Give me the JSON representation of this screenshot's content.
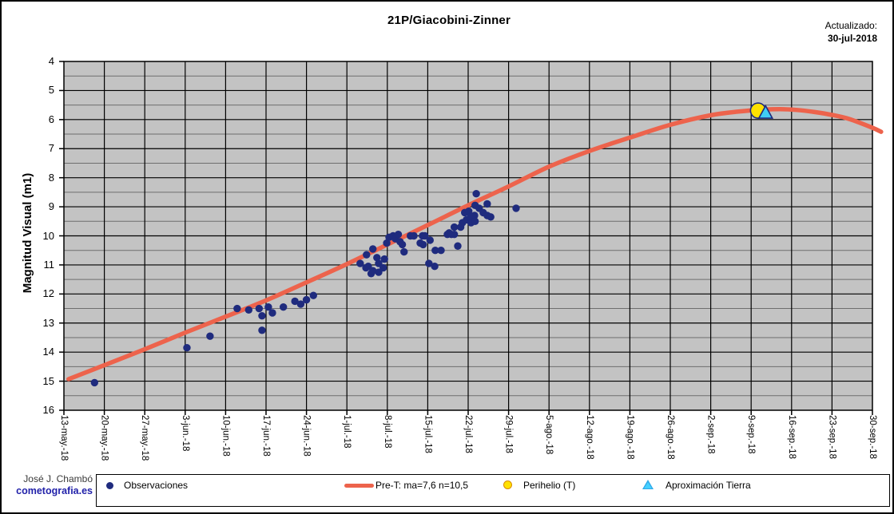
{
  "header": {
    "title": "21P/Giacobini-Zinner",
    "updated_label": "Actualizado:",
    "updated_date": "30-jul-2018"
  },
  "footer": {
    "author": "José J. Chambó",
    "site": "cometografia.es"
  },
  "colors": {
    "plot_bg": "#C3C3C3",
    "grid_major": "#000000",
    "grid_minor": "#6E6E6E",
    "axis": "#000000",
    "curve": "#ED634C",
    "observation": "#1F2B7E",
    "perihelion_fill": "#FFE100",
    "earth_approach_fill": "#3FCCF5",
    "marker_stroke": "#1F2B7E",
    "site_link": "#2222AA"
  },
  "chart_data": {
    "type": "scatter",
    "title": "21P/Giacobini-Zinner",
    "xlabel": "",
    "ylabel": "Magnitud Visual (m1)",
    "ylim": [
      4,
      16
    ],
    "y_inverted": true,
    "y_ticks": [
      4,
      5,
      6,
      7,
      8,
      9,
      10,
      11,
      12,
      13,
      14,
      15,
      16
    ],
    "y_minor_step": 0.5,
    "grid": true,
    "x_unit": "days since first tick (13-may-2018)",
    "x_tick_step_days": 7,
    "x_range_days": [
      0,
      140
    ],
    "x_tick_labels": [
      "13-may.-18",
      "20-may.-18",
      "27-may.-18",
      "3-jun.-18",
      "10-jun.-18",
      "17-jun.-18",
      "24-jun.-18",
      "1-jul.-18",
      "8-jul.-18",
      "15-jul.-18",
      "22-jul.-18",
      "29-jul.-18",
      "5-ago.-18",
      "12-ago.-18",
      "19-ago.-18",
      "26-ago.-18",
      "2-sep.-18",
      "9-sep.-18",
      "16-sep.-18",
      "23-sep.-18",
      "30-sep.-18"
    ],
    "legend_position": "bottom",
    "series": [
      {
        "id": "observations",
        "name": "Observaciones",
        "type": "scatter",
        "color": "#1F2B7E",
        "points": [
          [
            5.3,
            15.05
          ],
          [
            21.3,
            13.85
          ],
          [
            25.3,
            13.45
          ],
          [
            30,
            12.5
          ],
          [
            32,
            12.55
          ],
          [
            33.8,
            12.5
          ],
          [
            34.3,
            12.75
          ],
          [
            34.3,
            13.25
          ],
          [
            35.4,
            12.45
          ],
          [
            36.1,
            12.65
          ],
          [
            38,
            12.45
          ],
          [
            40,
            12.25
          ],
          [
            41,
            12.35
          ],
          [
            42,
            12.2
          ],
          [
            43.2,
            12.05
          ],
          [
            51.3,
            10.95
          ],
          [
            52.3,
            11.1
          ],
          [
            52.4,
            10.65
          ],
          [
            52.7,
            11.05
          ],
          [
            53.2,
            11.3
          ],
          [
            53.5,
            10.45
          ],
          [
            53.5,
            11.2
          ],
          [
            54.2,
            10.75
          ],
          [
            54.5,
            10.95
          ],
          [
            54.5,
            11.25
          ],
          [
            55.3,
            11.1
          ],
          [
            55.5,
            10.8
          ],
          [
            55.9,
            10.25
          ],
          [
            56.3,
            10.05
          ],
          [
            57,
            10
          ],
          [
            57.4,
            10.1
          ],
          [
            57.9,
            9.95
          ],
          [
            58.2,
            10.2
          ],
          [
            58.6,
            10.3
          ],
          [
            58.9,
            10.55
          ],
          [
            60,
            10
          ],
          [
            60.6,
            10
          ],
          [
            61.7,
            10.25
          ],
          [
            62.1,
            10
          ],
          [
            62.2,
            10.3
          ],
          [
            62.5,
            10
          ],
          [
            63.2,
            10.95
          ],
          [
            63.4,
            10.15
          ],
          [
            64.2,
            11.05
          ],
          [
            64.3,
            10.5
          ],
          [
            65.3,
            10.5
          ],
          [
            66.4,
            9.95
          ],
          [
            66.7,
            9.9
          ],
          [
            67.1,
            9.95
          ],
          [
            67.6,
            9.7
          ],
          [
            67.6,
            9.95
          ],
          [
            68.2,
            10.35
          ],
          [
            68.7,
            9.7
          ],
          [
            69,
            9.55
          ],
          [
            69.4,
            9.2
          ],
          [
            69.7,
            9.45
          ],
          [
            70.1,
            9.15
          ],
          [
            70.4,
            9.35
          ],
          [
            70.5,
            9.55
          ],
          [
            71.1,
            9.3
          ],
          [
            71.2,
            8.95
          ],
          [
            71.2,
            9.5
          ],
          [
            71.4,
            8.55
          ],
          [
            71.9,
            9.05
          ],
          [
            72.6,
            9.2
          ],
          [
            73.3,
            8.9
          ],
          [
            73.3,
            9.3
          ],
          [
            73.9,
            9.35
          ],
          [
            78.3,
            9.05
          ]
        ]
      },
      {
        "id": "curve",
        "name": "Pre-T: ma=7,6 n=10,5",
        "type": "line",
        "color": "#ED634C",
        "points": [
          [
            0.8,
            14.93
          ],
          [
            7,
            14.45
          ],
          [
            14,
            13.9
          ],
          [
            21,
            13.33
          ],
          [
            28,
            12.78
          ],
          [
            35,
            12.22
          ],
          [
            42,
            11.6
          ],
          [
            49,
            10.97
          ],
          [
            56,
            10.3
          ],
          [
            63,
            9.63
          ],
          [
            70,
            8.95
          ],
          [
            77,
            8.3
          ],
          [
            84,
            7.62
          ],
          [
            91,
            7.08
          ],
          [
            98,
            6.62
          ],
          [
            105,
            6.18
          ],
          [
            112,
            5.85
          ],
          [
            117,
            5.72
          ],
          [
            121,
            5.66
          ],
          [
            124,
            5.64
          ],
          [
            127,
            5.67
          ],
          [
            130,
            5.74
          ],
          [
            133,
            5.84
          ],
          [
            136,
            5.98
          ],
          [
            140,
            6.28
          ],
          [
            141.5,
            6.42
          ]
        ]
      },
      {
        "id": "perihelion",
        "name": "Perihelio (T)",
        "type": "marker_circle",
        "color": "#FFE100",
        "points": [
          [
            120.2,
            5.69
          ]
        ]
      },
      {
        "id": "earth_approach",
        "name": "Aproximación Tierra",
        "type": "marker_triangle",
        "color": "#3FCCF5",
        "points": [
          [
            121.5,
            5.76
          ]
        ]
      }
    ]
  }
}
